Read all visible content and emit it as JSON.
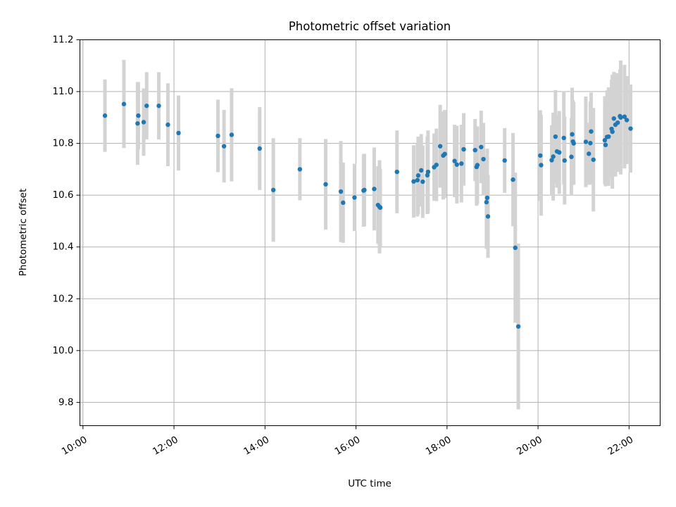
{
  "chart_data": {
    "type": "scatter",
    "title": "Photometric offset variation",
    "xlabel": "UTC time",
    "ylabel": "Photometric offset",
    "x_ticks": [
      "10:00",
      "12:00",
      "14:00",
      "16:00",
      "18:00",
      "20:00",
      "22:00"
    ],
    "y_ticks": [
      "9.8",
      "10.0",
      "10.2",
      "10.4",
      "10.6",
      "10.8",
      "11.0",
      "11.2"
    ],
    "xlim": [
      "09:56",
      "22:41"
    ],
    "ylim": [
      9.71,
      11.2
    ],
    "grid": true,
    "colors": {
      "point": "#1f77b4",
      "errorbar": "#d3d3d3",
      "grid": "#b0b0b0"
    },
    "series": [
      {
        "x": [
          "10:29",
          "10:54",
          "11:12",
          "11:13",
          "11:20",
          "11:24",
          "11:40",
          "11:52",
          "12:06",
          "12:58",
          "13:06",
          "13:16",
          "13:53",
          "14:11",
          "14:46",
          "15:20",
          "15:40",
          "15:43",
          "15:58",
          "16:10",
          "16:11",
          "16:24",
          "16:29",
          "16:31",
          "16:32",
          "16:54",
          "17:16",
          "17:21",
          "17:22",
          "17:26",
          "17:28",
          "17:34",
          "17:35",
          "17:43",
          "17:46",
          "17:51",
          "17:55",
          "17:57",
          "18:10",
          "18:13",
          "18:19",
          "18:22",
          "18:37",
          "18:39",
          "18:40",
          "18:45",
          "18:48",
          "18:52",
          "18:53",
          "18:54",
          "19:16",
          "19:27",
          "19:30",
          "19:34",
          "20:03",
          "20:04",
          "20:18",
          "20:20",
          "20:23",
          "20:25",
          "20:28",
          "20:34",
          "20:35",
          "20:44",
          "20:45",
          "20:46",
          "20:47",
          "21:03",
          "21:07",
          "21:09",
          "21:10",
          "21:13",
          "21:28",
          "21:29",
          "21:31",
          "21:33",
          "21:37",
          "21:38",
          "21:40",
          "21:42",
          "21:45",
          "21:48",
          "21:49",
          "21:54",
          "21:57",
          "22:02"
        ],
        "y": [
          10.907,
          10.952,
          10.877,
          10.907,
          10.882,
          10.945,
          10.945,
          10.872,
          10.84,
          10.829,
          10.789,
          10.833,
          10.78,
          10.62,
          10.7,
          10.642,
          10.614,
          10.571,
          10.591,
          10.618,
          10.62,
          10.624,
          10.562,
          10.555,
          10.552,
          10.69,
          10.653,
          10.658,
          10.676,
          10.696,
          10.652,
          10.677,
          10.69,
          10.708,
          10.717,
          10.789,
          10.753,
          10.759,
          10.732,
          10.718,
          10.722,
          10.777,
          10.774,
          10.709,
          10.716,
          10.786,
          10.739,
          10.573,
          10.59,
          10.518,
          10.734,
          10.66,
          10.397,
          10.093,
          10.753,
          10.716,
          10.735,
          10.749,
          10.826,
          10.769,
          10.765,
          10.821,
          10.734,
          10.748,
          10.835,
          10.807,
          10.8,
          10.806,
          10.76,
          10.801,
          10.846,
          10.737,
          10.812,
          10.794,
          10.825,
          10.826,
          10.856,
          10.845,
          10.896,
          10.872,
          10.88,
          10.905,
          10.9,
          10.903,
          10.89,
          10.857
        ],
        "yerr": [
          0.14,
          0.17,
          0.16,
          0.13,
          0.13,
          0.13,
          0.13,
          0.16,
          0.145,
          0.14,
          0.14,
          0.18,
          0.16,
          0.2,
          0.12,
          0.175,
          0.195,
          0.155,
          0.13,
          0.14,
          0.14,
          0.16,
          0.15,
          0.18,
          0.15,
          0.16,
          0.14,
          0.14,
          0.15,
          0.14,
          0.14,
          0.15,
          0.16,
          0.13,
          0.14,
          0.16,
          0.17,
          0.17,
          0.14,
          0.15,
          0.15,
          0.14,
          0.12,
          0.15,
          0.15,
          0.14,
          0.14,
          0.18,
          0.19,
          0.16,
          0.125,
          0.18,
          0.29,
          0.32,
          0.175,
          0.195,
          0.135,
          0.17,
          0.18,
          0.14,
          0.16,
          0.18,
          0.17,
          0.15,
          0.18,
          0.16,
          0.16,
          0.175,
          0.12,
          0.16,
          0.15,
          0.2,
          0.17,
          0.16,
          0.18,
          0.19,
          0.19,
          0.22,
          0.18,
          0.2,
          0.19,
          0.18,
          0.22,
          0.2,
          0.17,
          0.17
        ]
      }
    ]
  }
}
